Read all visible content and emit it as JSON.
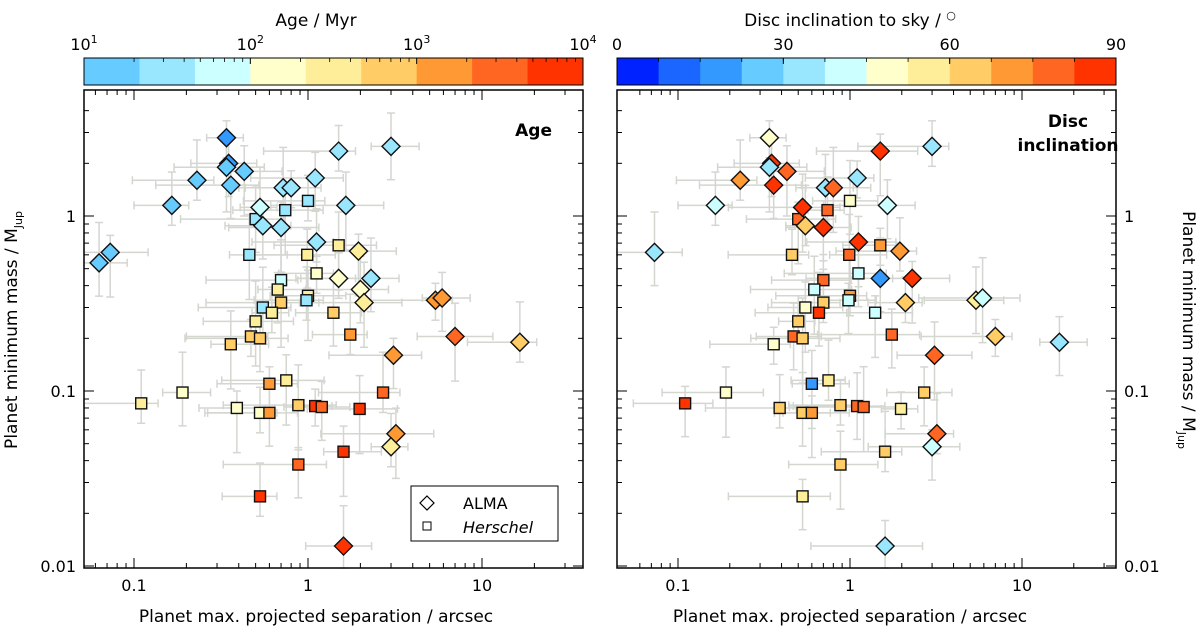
{
  "chart_data": [
    {
      "type": "scatter",
      "panel": "left",
      "title": "Age",
      "xlabel": "Planet max. projected separation / arcsec",
      "ylabel": "Planet minimum mass / M_Jup",
      "ylabel_main": "Planet minimum mass / M",
      "ylabel_sub": "Jup",
      "xscale": "log",
      "yscale": "log",
      "xlim": [
        0.055,
        30
      ],
      "ylim": [
        0.0095,
        4.5
      ],
      "xticks": [
        {
          "v": 0.1,
          "label": "0.1"
        },
        {
          "v": 1,
          "label": "1"
        },
        {
          "v": 10,
          "label": "10"
        }
      ],
      "yticks": [
        {
          "v": 0.01,
          "label": "0.01"
        },
        {
          "v": 0.1,
          "label": "0.1"
        },
        {
          "v": 1,
          "label": "1"
        }
      ],
      "colorbar": {
        "label": "Age / Myr",
        "scale": "log",
        "range": [
          10,
          10000
        ],
        "ticks": [
          {
            "v": 10,
            "base": "10",
            "exp": "1"
          },
          {
            "v": 100,
            "base": "10",
            "exp": "2"
          },
          {
            "v": 1000,
            "base": "10",
            "exp": "3"
          },
          {
            "v": 10000,
            "base": "10",
            "exp": "4"
          }
        ],
        "colors": [
          "#66ccff",
          "#99e6ff",
          "#ccffff",
          "#ffffcc",
          "#ffee99",
          "#ffcc66",
          "#ff9933",
          "#ff6622",
          "#ff3300"
        ]
      },
      "legend": {
        "placement": "lower-right",
        "entries": [
          {
            "label": "ALMA",
            "marker": "diamond",
            "italic": false
          },
          {
            "label": "Herschel",
            "marker": "square",
            "italic": true
          }
        ]
      },
      "points": [
        {
          "x": 0.34,
          "y": 2.8,
          "m": "d",
          "c": "#3399ff"
        },
        {
          "x": 0.35,
          "y": 2.0,
          "m": "d",
          "c": "#3399ff"
        },
        {
          "x": 0.34,
          "y": 1.9,
          "m": "d",
          "c": "#66ccff"
        },
        {
          "x": 0.23,
          "y": 1.6,
          "m": "d",
          "c": "#66ccff"
        },
        {
          "x": 0.36,
          "y": 1.5,
          "m": "d",
          "c": "#66ccff"
        },
        {
          "x": 0.43,
          "y": 1.8,
          "m": "d",
          "c": "#66ccff"
        },
        {
          "x": 0.165,
          "y": 1.15,
          "m": "d",
          "c": "#66ccff"
        },
        {
          "x": 0.063,
          "y": 0.54,
          "m": "d",
          "c": "#66ccff"
        },
        {
          "x": 0.073,
          "y": 0.62,
          "m": "d",
          "c": "#66ccff"
        },
        {
          "x": 1.5,
          "y": 2.35,
          "m": "d",
          "c": "#99e6ff"
        },
        {
          "x": 3.0,
          "y": 2.5,
          "m": "d",
          "c": "#99e6ff"
        },
        {
          "x": 0.72,
          "y": 1.45,
          "m": "d",
          "c": "#99e6ff"
        },
        {
          "x": 0.8,
          "y": 1.45,
          "m": "d",
          "c": "#99e6ff"
        },
        {
          "x": 1.1,
          "y": 1.65,
          "m": "d",
          "c": "#99e6ff"
        },
        {
          "x": 1.65,
          "y": 1.15,
          "m": "d",
          "c": "#99e6ff"
        },
        {
          "x": 0.53,
          "y": 1.12,
          "m": "d",
          "c": "#ccffff"
        },
        {
          "x": 0.55,
          "y": 0.88,
          "m": "d",
          "c": "#99e6ff"
        },
        {
          "x": 0.7,
          "y": 0.86,
          "m": "d",
          "c": "#99e6ff"
        },
        {
          "x": 1.12,
          "y": 0.71,
          "m": "d",
          "c": "#99e6ff"
        },
        {
          "x": 2.3,
          "y": 0.44,
          "m": "d",
          "c": "#99e6ff"
        },
        {
          "x": 1.95,
          "y": 0.63,
          "m": "d",
          "c": "#ffee99"
        },
        {
          "x": 1.5,
          "y": 0.44,
          "m": "d",
          "c": "#ffffcc"
        },
        {
          "x": 2.0,
          "y": 0.38,
          "m": "d",
          "c": "#ffffcc"
        },
        {
          "x": 2.1,
          "y": 0.32,
          "m": "d",
          "c": "#ffee99"
        },
        {
          "x": 5.4,
          "y": 0.33,
          "m": "d",
          "c": "#ff9933"
        },
        {
          "x": 5.9,
          "y": 0.34,
          "m": "d",
          "c": "#ff9933"
        },
        {
          "x": 7.0,
          "y": 0.205,
          "m": "d",
          "c": "#ff6622"
        },
        {
          "x": 16.5,
          "y": 0.19,
          "m": "d",
          "c": "#ffcc66"
        },
        {
          "x": 3.1,
          "y": 0.16,
          "m": "d",
          "c": "#ff9933"
        },
        {
          "x": 3.2,
          "y": 0.057,
          "m": "d",
          "c": "#ff9933"
        },
        {
          "x": 3.0,
          "y": 0.048,
          "m": "d",
          "c": "#ffee99"
        },
        {
          "x": 1.6,
          "y": 0.013,
          "m": "d",
          "c": "#ff3300"
        },
        {
          "x": 0.74,
          "y": 1.08,
          "m": "s",
          "c": "#99e6ff"
        },
        {
          "x": 1.0,
          "y": 1.22,
          "m": "s",
          "c": "#99e6ff"
        },
        {
          "x": 0.5,
          "y": 0.96,
          "m": "s",
          "c": "#99e6ff"
        },
        {
          "x": 0.46,
          "y": 0.6,
          "m": "s",
          "c": "#99e6ff"
        },
        {
          "x": 1.12,
          "y": 0.47,
          "m": "s",
          "c": "#ffffcc"
        },
        {
          "x": 0.99,
          "y": 0.6,
          "m": "s",
          "c": "#ffee99"
        },
        {
          "x": 1.5,
          "y": 0.68,
          "m": "s",
          "c": "#ffee99"
        },
        {
          "x": 0.7,
          "y": 0.43,
          "m": "s",
          "c": "#ccffff"
        },
        {
          "x": 0.67,
          "y": 0.38,
          "m": "s",
          "c": "#ffee99"
        },
        {
          "x": 1.0,
          "y": 0.35,
          "m": "s",
          "c": "#ffee99"
        },
        {
          "x": 0.98,
          "y": 0.33,
          "m": "s",
          "c": "#99e6ff"
        },
        {
          "x": 0.55,
          "y": 0.3,
          "m": "s",
          "c": "#99e6ff"
        },
        {
          "x": 0.7,
          "y": 0.32,
          "m": "s",
          "c": "#ffcc66"
        },
        {
          "x": 0.62,
          "y": 0.28,
          "m": "s",
          "c": "#ffee99"
        },
        {
          "x": 1.4,
          "y": 0.28,
          "m": "s",
          "c": "#ffcc66"
        },
        {
          "x": 0.5,
          "y": 0.25,
          "m": "s",
          "c": "#ffee99"
        },
        {
          "x": 0.47,
          "y": 0.205,
          "m": "s",
          "c": "#ffcc66"
        },
        {
          "x": 0.53,
          "y": 0.2,
          "m": "s",
          "c": "#ffcc66"
        },
        {
          "x": 0.36,
          "y": 0.185,
          "m": "s",
          "c": "#ffcc66"
        },
        {
          "x": 1.75,
          "y": 0.21,
          "m": "s",
          "c": "#ff9933"
        },
        {
          "x": 0.6,
          "y": 0.11,
          "m": "s",
          "c": "#ff9933"
        },
        {
          "x": 0.75,
          "y": 0.115,
          "m": "s",
          "c": "#ffee99"
        },
        {
          "x": 0.11,
          "y": 0.085,
          "m": "s",
          "c": "#ffee99"
        },
        {
          "x": 0.19,
          "y": 0.098,
          "m": "s",
          "c": "#ffffcc"
        },
        {
          "x": 0.39,
          "y": 0.08,
          "m": "s",
          "c": "#ffffcc"
        },
        {
          "x": 0.53,
          "y": 0.075,
          "m": "s",
          "c": "#ffffcc"
        },
        {
          "x": 0.6,
          "y": 0.075,
          "m": "s",
          "c": "#ff9933"
        },
        {
          "x": 0.88,
          "y": 0.083,
          "m": "s",
          "c": "#ffcc66"
        },
        {
          "x": 1.1,
          "y": 0.082,
          "m": "s",
          "c": "#ff3300"
        },
        {
          "x": 1.2,
          "y": 0.081,
          "m": "s",
          "c": "#ff6622"
        },
        {
          "x": 1.98,
          "y": 0.079,
          "m": "s",
          "c": "#ff3300"
        },
        {
          "x": 2.7,
          "y": 0.098,
          "m": "s",
          "c": "#ff6622"
        },
        {
          "x": 0.88,
          "y": 0.038,
          "m": "s",
          "c": "#ff6622"
        },
        {
          "x": 1.6,
          "y": 0.045,
          "m": "s",
          "c": "#ff3300"
        },
        {
          "x": 0.53,
          "y": 0.025,
          "m": "s",
          "c": "#ff3300"
        }
      ]
    },
    {
      "type": "scatter",
      "panel": "right",
      "title": "Disc inclination",
      "title_lines": [
        "Disc",
        "inclination"
      ],
      "xlabel": "Planet max. projected separation / arcsec",
      "ylabel": "Planet minimum mass / M_Jup",
      "ylabel_main": "Planet minimum mass / M",
      "ylabel_sub": "Jup",
      "xscale": "log",
      "yscale": "log",
      "xlim": [
        0.055,
        30
      ],
      "ylim": [
        0.0095,
        4.5
      ],
      "xticks": [
        {
          "v": 0.1,
          "label": "0.1"
        },
        {
          "v": 1,
          "label": "1"
        },
        {
          "v": 10,
          "label": "10"
        }
      ],
      "yticks": [
        {
          "v": 0.01,
          "label": "0.01"
        },
        {
          "v": 0.1,
          "label": "0.1"
        },
        {
          "v": 1,
          "label": "1"
        }
      ],
      "colorbar": {
        "label": "Disc inclination to sky / °",
        "label_main": "Disc inclination to sky / ",
        "label_sup": "○",
        "scale": "linear",
        "range": [
          0,
          90
        ],
        "ticks": [
          {
            "v": 0,
            "label": "0"
          },
          {
            "v": 30,
            "label": "30"
          },
          {
            "v": 60,
            "label": "60"
          },
          {
            "v": 90,
            "label": "90"
          }
        ],
        "colors": [
          "#0022ff",
          "#1a66ff",
          "#3399ff",
          "#66ccff",
          "#99e6ff",
          "#ccffff",
          "#ffffcc",
          "#ffee99",
          "#ffcc66",
          "#ff9933",
          "#ff6622",
          "#ff3300"
        ]
      },
      "points": [
        {
          "x": 0.34,
          "y": 2.8,
          "m": "d",
          "c": "#ffffcc"
        },
        {
          "x": 0.35,
          "y": 2.0,
          "m": "d",
          "c": "#ff3300"
        },
        {
          "x": 0.34,
          "y": 1.9,
          "m": "d",
          "c": "#99e6ff"
        },
        {
          "x": 0.23,
          "y": 1.6,
          "m": "d",
          "c": "#ff9933"
        },
        {
          "x": 0.36,
          "y": 1.5,
          "m": "d",
          "c": "#ff3300"
        },
        {
          "x": 0.43,
          "y": 1.8,
          "m": "d",
          "c": "#ff6622"
        },
        {
          "x": 0.165,
          "y": 1.15,
          "m": "d",
          "c": "#ccffff"
        },
        {
          "x": 0.073,
          "y": 0.62,
          "m": "d",
          "c": "#99e6ff"
        },
        {
          "x": 1.5,
          "y": 2.35,
          "m": "d",
          "c": "#ff3300"
        },
        {
          "x": 3.0,
          "y": 2.5,
          "m": "d",
          "c": "#99e6ff"
        },
        {
          "x": 0.72,
          "y": 1.45,
          "m": "d",
          "c": "#99e6ff"
        },
        {
          "x": 0.8,
          "y": 1.45,
          "m": "d",
          "c": "#ff6622"
        },
        {
          "x": 1.1,
          "y": 1.65,
          "m": "d",
          "c": "#99e6ff"
        },
        {
          "x": 1.65,
          "y": 1.15,
          "m": "d",
          "c": "#ccffff"
        },
        {
          "x": 0.53,
          "y": 1.12,
          "m": "d",
          "c": "#ff3300"
        },
        {
          "x": 0.55,
          "y": 0.88,
          "m": "d",
          "c": "#ffcc66"
        },
        {
          "x": 0.7,
          "y": 0.86,
          "m": "d",
          "c": "#ff3300"
        },
        {
          "x": 1.12,
          "y": 0.71,
          "m": "d",
          "c": "#ff3300"
        },
        {
          "x": 1.95,
          "y": 0.63,
          "m": "d",
          "c": "#ff9933"
        },
        {
          "x": 1.5,
          "y": 0.44,
          "m": "d",
          "c": "#3399ff"
        },
        {
          "x": 2.3,
          "y": 0.44,
          "m": "d",
          "c": "#ff3300"
        },
        {
          "x": 2.1,
          "y": 0.32,
          "m": "d",
          "c": "#ffcc66"
        },
        {
          "x": 5.4,
          "y": 0.33,
          "m": "d",
          "c": "#ffee99"
        },
        {
          "x": 5.9,
          "y": 0.34,
          "m": "d",
          "c": "#ccffff"
        },
        {
          "x": 7.0,
          "y": 0.205,
          "m": "d",
          "c": "#ffcc66"
        },
        {
          "x": 16.5,
          "y": 0.19,
          "m": "d",
          "c": "#99e6ff"
        },
        {
          "x": 3.1,
          "y": 0.16,
          "m": "d",
          "c": "#ff6622"
        },
        {
          "x": 3.2,
          "y": 0.057,
          "m": "d",
          "c": "#ff6622"
        },
        {
          "x": 3.0,
          "y": 0.048,
          "m": "d",
          "c": "#ccffff"
        },
        {
          "x": 1.6,
          "y": 0.013,
          "m": "d",
          "c": "#99e6ff"
        },
        {
          "x": 0.74,
          "y": 1.08,
          "m": "s",
          "c": "#ff6622"
        },
        {
          "x": 1.0,
          "y": 1.22,
          "m": "s",
          "c": "#ffffcc"
        },
        {
          "x": 0.5,
          "y": 0.96,
          "m": "s",
          "c": "#ff6622"
        },
        {
          "x": 0.46,
          "y": 0.6,
          "m": "s",
          "c": "#ffcc66"
        },
        {
          "x": 1.12,
          "y": 0.47,
          "m": "s",
          "c": "#ccffff"
        },
        {
          "x": 0.99,
          "y": 0.6,
          "m": "s",
          "c": "#ff6622"
        },
        {
          "x": 1.5,
          "y": 0.68,
          "m": "s",
          "c": "#ff9933"
        },
        {
          "x": 0.7,
          "y": 0.43,
          "m": "s",
          "c": "#ff6622"
        },
        {
          "x": 0.62,
          "y": 0.38,
          "m": "s",
          "c": "#ccffff"
        },
        {
          "x": 1.0,
          "y": 0.35,
          "m": "s",
          "c": "#ff9933"
        },
        {
          "x": 0.98,
          "y": 0.33,
          "m": "s",
          "c": "#ccffff"
        },
        {
          "x": 0.55,
          "y": 0.3,
          "m": "s",
          "c": "#ffffcc"
        },
        {
          "x": 0.7,
          "y": 0.32,
          "m": "s",
          "c": "#ffcc66"
        },
        {
          "x": 0.66,
          "y": 0.28,
          "m": "s",
          "c": "#ff3300"
        },
        {
          "x": 1.4,
          "y": 0.28,
          "m": "s",
          "c": "#ccffff"
        },
        {
          "x": 0.5,
          "y": 0.25,
          "m": "s",
          "c": "#ffcc66"
        },
        {
          "x": 0.47,
          "y": 0.205,
          "m": "s",
          "c": "#ff6622"
        },
        {
          "x": 0.53,
          "y": 0.2,
          "m": "s",
          "c": "#ffcc66"
        },
        {
          "x": 0.36,
          "y": 0.185,
          "m": "s",
          "c": "#ffffcc"
        },
        {
          "x": 1.75,
          "y": 0.21,
          "m": "s",
          "c": "#ff6622"
        },
        {
          "x": 0.6,
          "y": 0.11,
          "m": "s",
          "c": "#3399ff"
        },
        {
          "x": 0.75,
          "y": 0.115,
          "m": "s",
          "c": "#ffee99"
        },
        {
          "x": 0.11,
          "y": 0.085,
          "m": "s",
          "c": "#ff3300"
        },
        {
          "x": 0.19,
          "y": 0.098,
          "m": "s",
          "c": "#ffffcc"
        },
        {
          "x": 0.39,
          "y": 0.08,
          "m": "s",
          "c": "#ffcc66"
        },
        {
          "x": 0.53,
          "y": 0.075,
          "m": "s",
          "c": "#ffcc66"
        },
        {
          "x": 0.6,
          "y": 0.075,
          "m": "s",
          "c": "#ff9933"
        },
        {
          "x": 0.88,
          "y": 0.083,
          "m": "s",
          "c": "#ffcc66"
        },
        {
          "x": 1.1,
          "y": 0.082,
          "m": "s",
          "c": "#ff6622"
        },
        {
          "x": 1.2,
          "y": 0.081,
          "m": "s",
          "c": "#ff6622"
        },
        {
          "x": 1.98,
          "y": 0.079,
          "m": "s",
          "c": "#ffee99"
        },
        {
          "x": 2.7,
          "y": 0.098,
          "m": "s",
          "c": "#ffcc66"
        },
        {
          "x": 0.88,
          "y": 0.038,
          "m": "s",
          "c": "#ffcc66"
        },
        {
          "x": 1.6,
          "y": 0.045,
          "m": "s",
          "c": "#ffcc66"
        },
        {
          "x": 0.53,
          "y": 0.025,
          "m": "s",
          "c": "#ffee99"
        }
      ]
    }
  ]
}
